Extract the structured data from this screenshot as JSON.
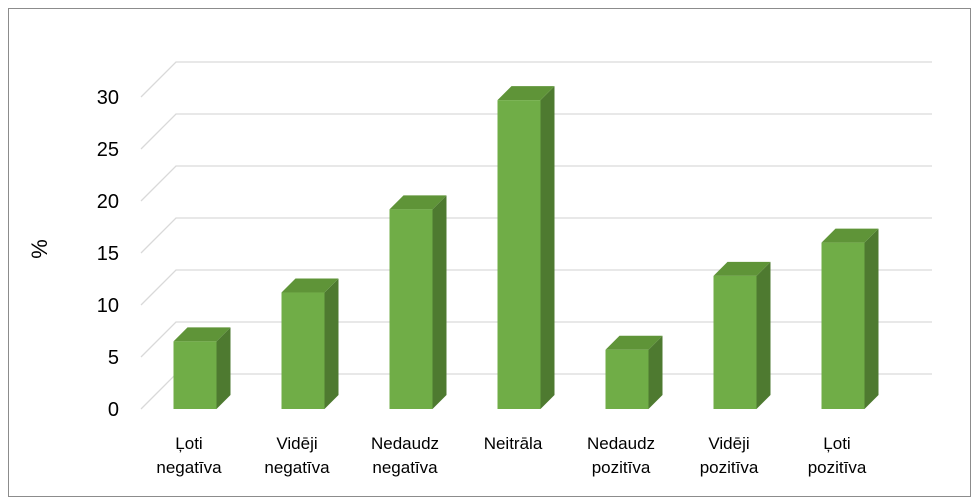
{
  "chart_data": {
    "type": "bar",
    "style": "3d-column",
    "ylabel": "%",
    "xlabel": "",
    "ylim": [
      0,
      30
    ],
    "ytick_step": 5,
    "yticks": [
      "0",
      "5",
      "10",
      "15",
      "20",
      "25",
      "30"
    ],
    "grid": true,
    "legend": "none",
    "categories": [
      [
        "Ļoti",
        "negatīva"
      ],
      [
        "Vidēji",
        "negatīva"
      ],
      [
        "Nedaudz",
        "negatīva"
      ],
      [
        "Neitrāla"
      ],
      [
        "Nedaudz",
        "pozitīva"
      ],
      [
        "Vidēji",
        "pozitīva"
      ],
      [
        "Ļoti",
        "pozitīva"
      ]
    ],
    "values": [
      6.5,
      11.2,
      19.2,
      29.7,
      5.7,
      12.8,
      16.0
    ],
    "colors": {
      "bar_front": "#70ad47",
      "bar_side": "#4e7a30",
      "bar_top": "#5f9438",
      "gridline": "#d9d9d9"
    }
  }
}
